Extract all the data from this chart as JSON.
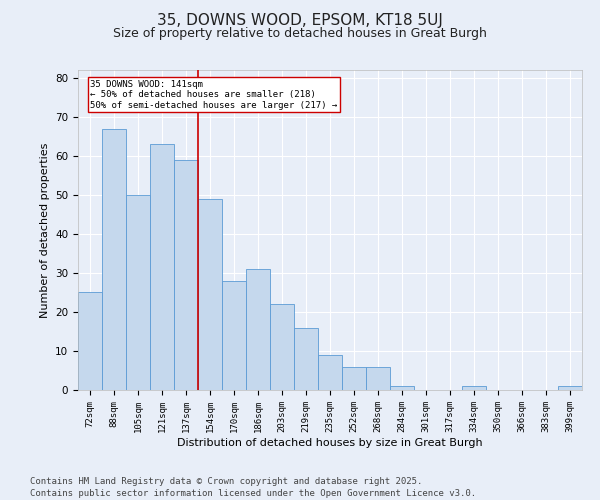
{
  "title": "35, DOWNS WOOD, EPSOM, KT18 5UJ",
  "subtitle": "Size of property relative to detached houses in Great Burgh",
  "xlabel": "Distribution of detached houses by size in Great Burgh",
  "ylabel": "Number of detached properties",
  "categories": [
    "72sqm",
    "88sqm",
    "105sqm",
    "121sqm",
    "137sqm",
    "154sqm",
    "170sqm",
    "186sqm",
    "203sqm",
    "219sqm",
    "235sqm",
    "252sqm",
    "268sqm",
    "284sqm",
    "301sqm",
    "317sqm",
    "334sqm",
    "350sqm",
    "366sqm",
    "383sqm",
    "399sqm"
  ],
  "values": [
    25,
    67,
    50,
    63,
    59,
    49,
    28,
    31,
    22,
    16,
    9,
    6,
    6,
    1,
    0,
    0,
    1,
    0,
    0,
    0,
    1
  ],
  "bar_color": "#c5d8ed",
  "bar_edge_color": "#5b9bd5",
  "vline_x": 4.5,
  "vline_color": "#cc0000",
  "annotation_text": "35 DOWNS WOOD: 141sqm\n← 50% of detached houses are smaller (218)\n50% of semi-detached houses are larger (217) →",
  "annotation_box_color": "#ffffff",
  "annotation_box_edge": "#cc0000",
  "ylim": [
    0,
    82
  ],
  "yticks": [
    0,
    10,
    20,
    30,
    40,
    50,
    60,
    70,
    80
  ],
  "footer": "Contains HM Land Registry data © Crown copyright and database right 2025.\nContains public sector information licensed under the Open Government Licence v3.0.",
  "background_color": "#e8eef8",
  "grid_color": "#ffffff",
  "title_fontsize": 11,
  "subtitle_fontsize": 9,
  "label_fontsize": 8,
  "tick_fontsize": 6.5,
  "footer_fontsize": 6.5
}
